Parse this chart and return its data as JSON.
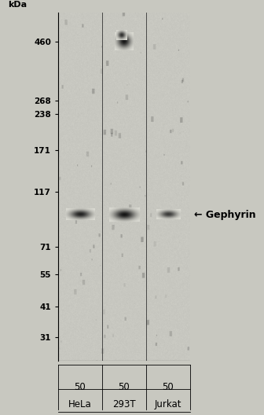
{
  "background_color": "#d8d8d0",
  "panel_color": "#e8e8e0",
  "fig_width": 3.36,
  "fig_height": 5.28,
  "dpi": 100,
  "mw_labels": [
    "460",
    "268",
    "238",
    "171",
    "117",
    "71",
    "55",
    "41",
    "31"
  ],
  "mw_values": [
    460,
    268,
    238,
    171,
    117,
    71,
    55,
    41,
    31
  ],
  "y_min": 28,
  "y_max": 520,
  "lane_labels": [
    [
      "50",
      "HeLa"
    ],
    [
      "50",
      "293T"
    ],
    [
      "50",
      "Jurkat"
    ]
  ],
  "annotation_text": "← Gephyrin",
  "annotation_mw": 95,
  "kdal_label": "kDa",
  "band_color": "#111111",
  "noise_color": "#aaaaaa"
}
